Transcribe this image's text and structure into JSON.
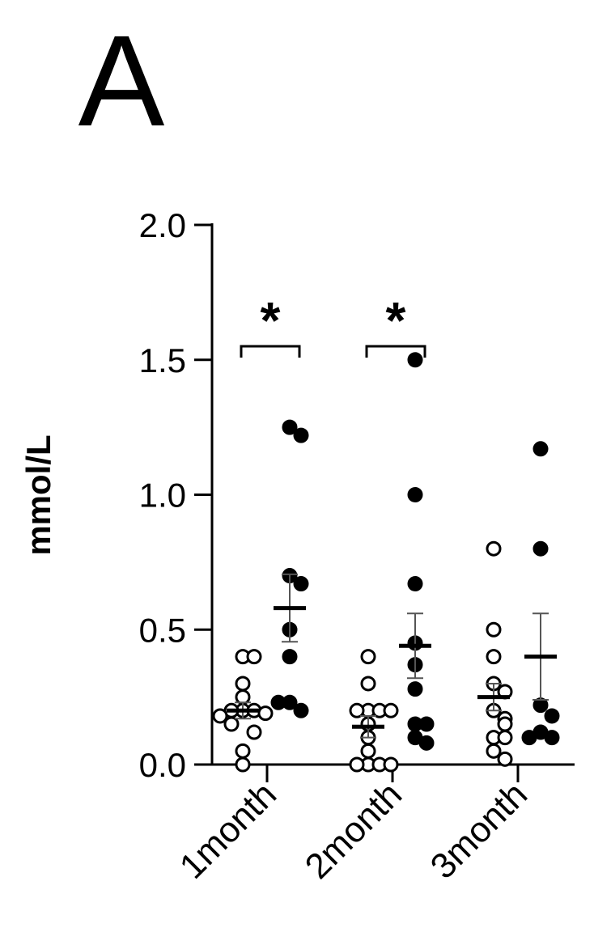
{
  "chart_data": {
    "type": "dot",
    "panel_label": "A",
    "ylabel": "mmol/L",
    "categories": [
      "1month",
      "2month",
      "3month"
    ],
    "annotations": [
      "*",
      "*",
      null
    ],
    "ylim": [
      0,
      2.0
    ],
    "yticks": [
      {
        "value": 0,
        "label": "0.0"
      },
      0.5,
      {
        "value": 1,
        "label": "1.0"
      },
      1.5,
      {
        "value": 2,
        "label": "2.0"
      }
    ],
    "series": [
      {
        "marker": "open",
        "color": "#000000",
        "values": [
          [
            0.4,
            0.4,
            0.3,
            0.25,
            0.2,
            0.2,
            0.2,
            0.19,
            0.18,
            0.15,
            0.12,
            0.05,
            0.0
          ],
          [
            0.4,
            0.3,
            0.2,
            0.2,
            0.2,
            0.2,
            0.15,
            0.1,
            0.05,
            0.0,
            0.0,
            0.0,
            0.0
          ],
          [
            0.8,
            0.5,
            0.4,
            0.3,
            0.27,
            0.2,
            0.17,
            0.15,
            0.1,
            0.1,
            0.05,
            0.02
          ]
        ],
        "means": [
          0.2,
          0.14,
          0.25
        ],
        "sems": [
          0.03,
          0.04,
          0.05
        ]
      },
      {
        "marker": "filled",
        "color": "#000000",
        "values": [
          [
            1.25,
            1.22,
            0.7,
            0.67,
            0.5,
            0.4,
            0.23,
            0.2,
            0.23
          ],
          [
            1.5,
            1.0,
            0.67,
            0.45,
            0.37,
            0.28,
            0.15,
            0.15,
            0.1,
            0.08
          ],
          [
            1.17,
            0.8,
            0.22,
            0.18,
            0.12,
            0.1,
            0.1
          ]
        ],
        "means": [
          0.58,
          0.44,
          0.4
        ],
        "sems": [
          0.125,
          0.12,
          0.16
        ]
      }
    ]
  }
}
